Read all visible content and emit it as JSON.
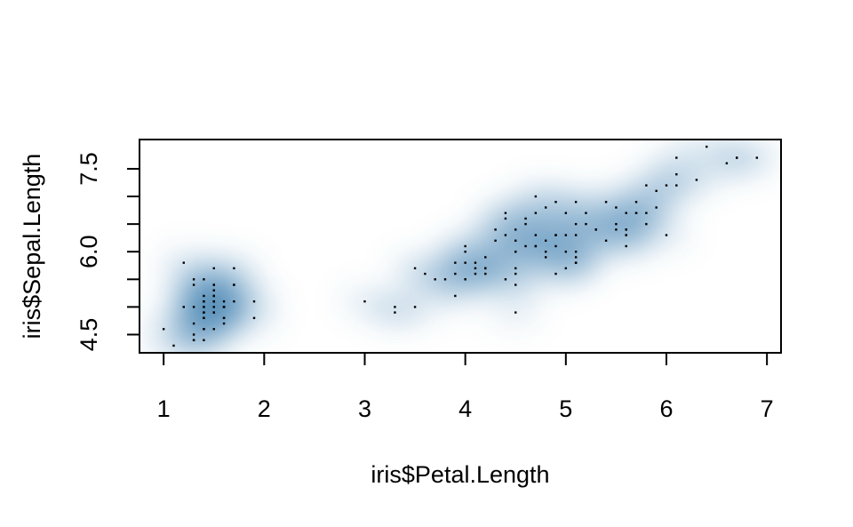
{
  "chart_data": {
    "type": "scatter",
    "subtype": "smoothed density scatter (smoothScatter)",
    "title": "",
    "xlabel": "iris$Petal.Length",
    "ylabel": "iris$Sepal.Length",
    "xlim": [
      0.76,
      7.14
    ],
    "ylim": [
      4.17,
      8.03
    ],
    "xticks": [
      1,
      2,
      3,
      4,
      5,
      6,
      7
    ],
    "yticks": [
      4.5,
      6.0,
      7.5
    ],
    "yticks_minor": [
      5.0,
      5.5,
      6.5,
      7.0
    ],
    "grid": false,
    "legend": "none",
    "colors": {
      "density_high": "#08306B",
      "density_mid": "#4682B4",
      "density_low": "#DEEBF7",
      "points": "#000000",
      "axes": "#000000"
    },
    "points": [
      [
        1.4,
        5.1
      ],
      [
        1.4,
        4.9
      ],
      [
        1.3,
        4.7
      ],
      [
        1.5,
        4.6
      ],
      [
        1.4,
        5.0
      ],
      [
        1.7,
        5.4
      ],
      [
        1.4,
        4.6
      ],
      [
        1.5,
        5.0
      ],
      [
        1.4,
        4.4
      ],
      [
        1.5,
        4.9
      ],
      [
        1.5,
        5.4
      ],
      [
        1.6,
        4.8
      ],
      [
        1.4,
        4.8
      ],
      [
        1.1,
        4.3
      ],
      [
        1.2,
        5.8
      ],
      [
        1.5,
        5.7
      ],
      [
        1.3,
        5.4
      ],
      [
        1.4,
        5.1
      ],
      [
        1.7,
        5.7
      ],
      [
        1.5,
        5.1
      ],
      [
        1.7,
        5.4
      ],
      [
        1.5,
        5.1
      ],
      [
        1.0,
        4.6
      ],
      [
        1.7,
        5.1
      ],
      [
        1.9,
        4.8
      ],
      [
        1.6,
        5.0
      ],
      [
        1.6,
        5.0
      ],
      [
        1.5,
        5.2
      ],
      [
        1.4,
        5.2
      ],
      [
        1.6,
        4.7
      ],
      [
        1.6,
        4.8
      ],
      [
        1.5,
        5.4
      ],
      [
        1.5,
        5.2
      ],
      [
        1.4,
        5.5
      ],
      [
        1.5,
        4.9
      ],
      [
        1.2,
        5.0
      ],
      [
        1.3,
        5.5
      ],
      [
        1.4,
        4.9
      ],
      [
        1.3,
        4.4
      ],
      [
        1.5,
        5.1
      ],
      [
        1.3,
        5.0
      ],
      [
        1.3,
        4.5
      ],
      [
        1.3,
        4.4
      ],
      [
        1.6,
        5.0
      ],
      [
        1.9,
        5.1
      ],
      [
        1.4,
        4.8
      ],
      [
        1.6,
        5.1
      ],
      [
        1.4,
        4.6
      ],
      [
        1.5,
        5.3
      ],
      [
        1.4,
        5.0
      ],
      [
        4.7,
        7.0
      ],
      [
        4.5,
        6.4
      ],
      [
        4.9,
        6.9
      ],
      [
        4.0,
        5.5
      ],
      [
        4.6,
        6.5
      ],
      [
        4.5,
        5.7
      ],
      [
        4.7,
        6.3
      ],
      [
        3.3,
        4.9
      ],
      [
        4.6,
        6.6
      ],
      [
        3.9,
        5.2
      ],
      [
        3.5,
        5.0
      ],
      [
        4.2,
        5.9
      ],
      [
        4.0,
        6.0
      ],
      [
        4.7,
        6.1
      ],
      [
        3.6,
        5.6
      ],
      [
        4.4,
        6.7
      ],
      [
        4.5,
        5.6
      ],
      [
        4.1,
        5.8
      ],
      [
        4.5,
        6.2
      ],
      [
        3.9,
        5.6
      ],
      [
        4.8,
        5.9
      ],
      [
        4.0,
        6.1
      ],
      [
        4.9,
        6.3
      ],
      [
        4.7,
        6.1
      ],
      [
        4.3,
        6.4
      ],
      [
        4.4,
        6.6
      ],
      [
        4.8,
        6.8
      ],
      [
        5.0,
        6.7
      ],
      [
        4.5,
        6.0
      ],
      [
        3.5,
        5.7
      ],
      [
        3.8,
        5.5
      ],
      [
        3.7,
        5.5
      ],
      [
        3.9,
        5.8
      ],
      [
        5.1,
        6.0
      ],
      [
        4.5,
        5.4
      ],
      [
        4.5,
        6.0
      ],
      [
        4.7,
        6.7
      ],
      [
        4.4,
        6.3
      ],
      [
        4.1,
        5.6
      ],
      [
        4.0,
        5.5
      ],
      [
        4.4,
        5.5
      ],
      [
        4.6,
        6.1
      ],
      [
        4.0,
        5.8
      ],
      [
        3.3,
        5.0
      ],
      [
        4.2,
        5.6
      ],
      [
        4.2,
        5.7
      ],
      [
        4.2,
        5.7
      ],
      [
        4.3,
        6.2
      ],
      [
        3.0,
        5.1
      ],
      [
        4.1,
        5.7
      ],
      [
        6.0,
        6.3
      ],
      [
        5.1,
        5.8
      ],
      [
        5.9,
        7.1
      ],
      [
        5.6,
        6.3
      ],
      [
        5.8,
        6.5
      ],
      [
        6.6,
        7.6
      ],
      [
        4.5,
        4.9
      ],
      [
        6.3,
        7.3
      ],
      [
        5.8,
        6.7
      ],
      [
        6.1,
        7.2
      ],
      [
        5.1,
        6.5
      ],
      [
        5.3,
        6.4
      ],
      [
        5.5,
        6.8
      ],
      [
        5.0,
        5.7
      ],
      [
        5.1,
        5.8
      ],
      [
        5.3,
        6.4
      ],
      [
        5.5,
        6.5
      ],
      [
        6.7,
        7.7
      ],
      [
        6.9,
        7.7
      ],
      [
        5.0,
        6.0
      ],
      [
        5.7,
        6.9
      ],
      [
        4.9,
        5.6
      ],
      [
        6.7,
        7.7
      ],
      [
        4.9,
        6.3
      ],
      [
        5.7,
        6.7
      ],
      [
        6.0,
        7.2
      ],
      [
        4.8,
        6.2
      ],
      [
        4.9,
        6.1
      ],
      [
        5.6,
        6.4
      ],
      [
        5.8,
        7.2
      ],
      [
        6.1,
        7.4
      ],
      [
        6.4,
        7.9
      ],
      [
        5.6,
        6.4
      ],
      [
        5.1,
        6.3
      ],
      [
        5.6,
        6.1
      ],
      [
        6.1,
        7.7
      ],
      [
        5.6,
        6.3
      ],
      [
        5.5,
        6.4
      ],
      [
        4.8,
        6.0
      ],
      [
        5.4,
        6.9
      ],
      [
        5.6,
        6.7
      ],
      [
        5.1,
        6.9
      ],
      [
        5.1,
        5.8
      ],
      [
        5.9,
        6.8
      ],
      [
        5.7,
        6.7
      ],
      [
        5.2,
        6.7
      ],
      [
        5.0,
        6.3
      ],
      [
        5.2,
        6.5
      ],
      [
        5.4,
        6.2
      ],
      [
        5.1,
        5.9
      ]
    ]
  }
}
